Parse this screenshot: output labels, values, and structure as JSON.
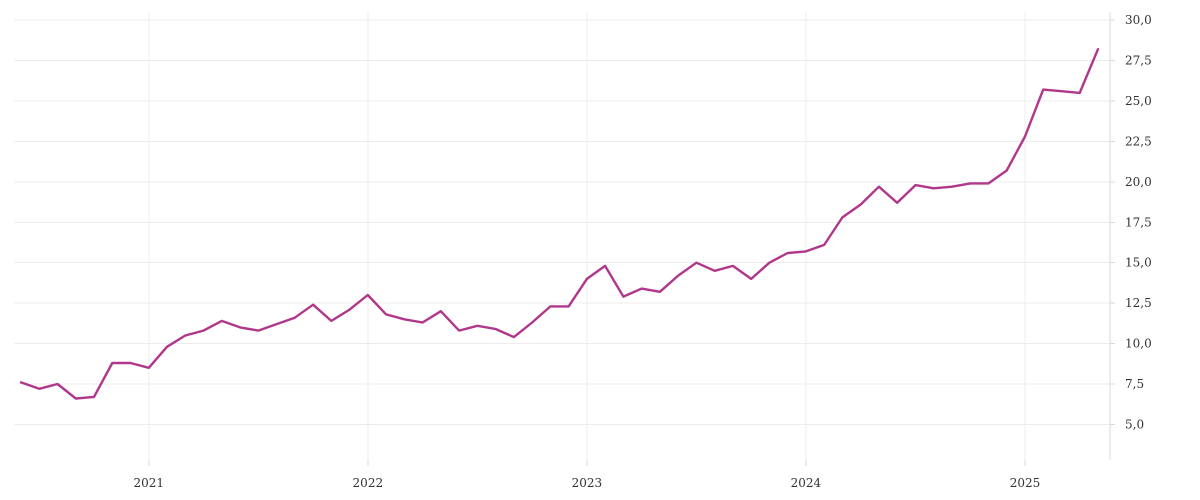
{
  "chart_data": {
    "type": "line",
    "title": "",
    "xlabel": "",
    "ylabel": "",
    "grid": true,
    "legend": "none",
    "y_axis_side": "right",
    "xlim": [
      "2020-06",
      "2025-05"
    ],
    "ylim": [
      2.8,
      30.5
    ],
    "y_ticks": [
      5,
      7.5,
      10,
      12.5,
      15,
      17.5,
      20,
      22.5,
      25,
      27.5,
      30
    ],
    "y_tick_labels": [
      "5,0",
      "7,5",
      "10,0",
      "12,5",
      "15,0",
      "17,5",
      "20,0",
      "22,5",
      "25,0",
      "27,5",
      "30,0"
    ],
    "x_ticks": [
      "2021-01",
      "2022-01",
      "2023-01",
      "2024-01",
      "2025-01"
    ],
    "x_tick_labels": [
      "2021",
      "2022",
      "2023",
      "2024",
      "2025"
    ],
    "series": [
      {
        "color": "#b0378a",
        "x": [
          "2020-06",
          "2020-07",
          "2020-08",
          "2020-09",
          "2020-10",
          "2020-11",
          "2020-12",
          "2021-01",
          "2021-02",
          "2021-03",
          "2021-04",
          "2021-05",
          "2021-06",
          "2021-07",
          "2021-08",
          "2021-09",
          "2021-10",
          "2021-11",
          "2021-12",
          "2022-01",
          "2022-02",
          "2022-03",
          "2022-04",
          "2022-05",
          "2022-06",
          "2022-07",
          "2022-08",
          "2022-09",
          "2022-10",
          "2022-11",
          "2022-12",
          "2023-01",
          "2023-02",
          "2023-03",
          "2023-04",
          "2023-05",
          "2023-06",
          "2023-07",
          "2023-08",
          "2023-09",
          "2023-10",
          "2023-11",
          "2023-12",
          "2024-01",
          "2024-02",
          "2024-03",
          "2024-04",
          "2024-05",
          "2024-06",
          "2024-07",
          "2024-08",
          "2024-09",
          "2024-10",
          "2024-11",
          "2024-12",
          "2025-01",
          "2025-02",
          "2025-03",
          "2025-04",
          "2025-05"
        ],
        "values": [
          7.6,
          7.2,
          7.5,
          6.6,
          6.7,
          8.8,
          8.8,
          8.5,
          9.8,
          10.5,
          10.8,
          11.4,
          11.0,
          10.8,
          11.2,
          11.6,
          12.4,
          11.4,
          12.1,
          13.0,
          11.8,
          11.5,
          11.3,
          12.0,
          10.8,
          11.1,
          10.9,
          10.4,
          11.3,
          12.3,
          12.3,
          14.0,
          14.8,
          12.9,
          13.4,
          13.2,
          14.2,
          15.0,
          14.5,
          14.8,
          14.0,
          15.0,
          15.6,
          15.7,
          16.1,
          17.8,
          18.6,
          19.7,
          18.7,
          19.8,
          19.6,
          19.7,
          19.9,
          19.9,
          20.7,
          22.8,
          25.7,
          25.6,
          25.5,
          28.2
        ]
      }
    ]
  }
}
